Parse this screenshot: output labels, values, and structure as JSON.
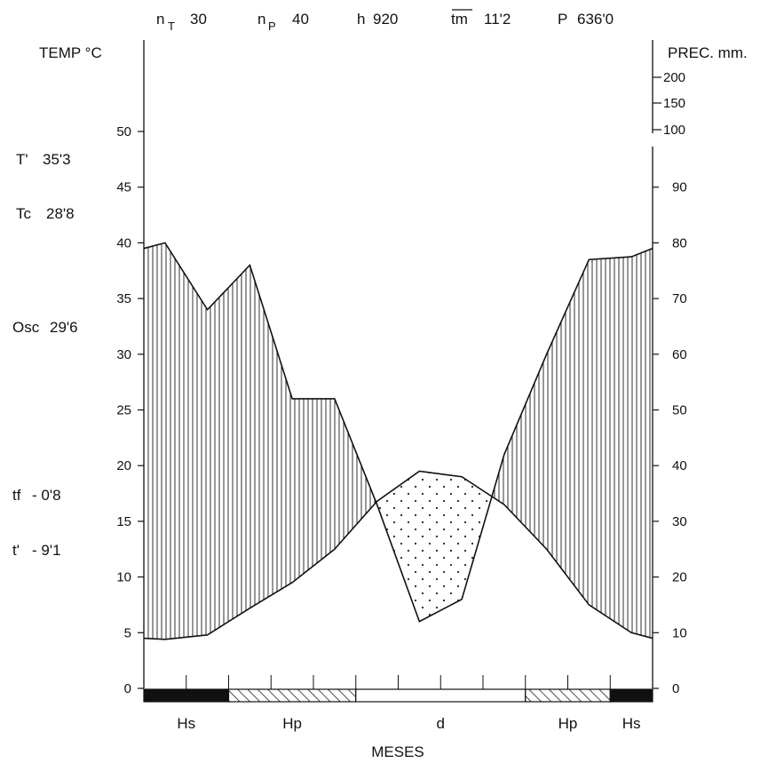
{
  "chart_data": {
    "type": "climate-diagram",
    "header": {
      "nT_label": "n",
      "nT_sub": "T",
      "nT_value": "30",
      "nP_label": "n",
      "nP_sub": "P",
      "nP_value": "40",
      "h_label": "h",
      "h_value": "920",
      "tm_label": "tm",
      "tm_value": "11'2",
      "P_label": "P",
      "P_value": "636'0"
    },
    "left_axis": {
      "title": "TEMP °C",
      "range": [
        0,
        50
      ],
      "ticks": [
        "0",
        "5",
        "10",
        "15",
        "20",
        "25",
        "30",
        "35",
        "40",
        "45",
        "50"
      ]
    },
    "right_axis": {
      "title": "PREC. mm.",
      "range": [
        0,
        100
      ],
      "ticks": [
        "0",
        "10",
        "20",
        "30",
        "40",
        "50",
        "60",
        "70",
        "80",
        "90"
      ],
      "compressed_ticks": [
        "100",
        "150",
        "200"
      ]
    },
    "side_stats": [
      {
        "label": "T'",
        "value": "35'3"
      },
      {
        "label": "Tc",
        "value": "28'8"
      },
      {
        "label": "Osc",
        "value": "29'6"
      },
      {
        "label": "tf",
        "value": "- 0'8"
      },
      {
        "label": "t'",
        "value": "- 9'1"
      }
    ],
    "x_axis_title": "MESES",
    "month_positions": [
      0,
      0.5,
      1.5,
      2.5,
      3.5,
      4.5,
      5.5,
      6.5,
      7.5,
      8.5,
      9.5,
      10.5,
      11.5,
      12
    ],
    "temperature": [
      4.5,
      4.4,
      4.8,
      7.2,
      9.5,
      12.5,
      16.8,
      19.5,
      19.0,
      16.5,
      12.5,
      7.5,
      5.0,
      4.5
    ],
    "precipitation": [
      79,
      80,
      68,
      76,
      52,
      52,
      33,
      12,
      16,
      42,
      60,
      77,
      77.5,
      79
    ],
    "bar_segments": [
      {
        "label": "Hs",
        "from": 0,
        "to": 2,
        "style": "solid"
      },
      {
        "label": "Hp",
        "from": 2,
        "to": 5,
        "style": "hatched"
      },
      {
        "label": "d",
        "from": 5,
        "to": 9,
        "style": "empty"
      },
      {
        "label": "Hp",
        "from": 9,
        "to": 11,
        "style": "hatched"
      },
      {
        "label": "Hs",
        "from": 11,
        "to": 12,
        "style": "solid"
      }
    ]
  }
}
